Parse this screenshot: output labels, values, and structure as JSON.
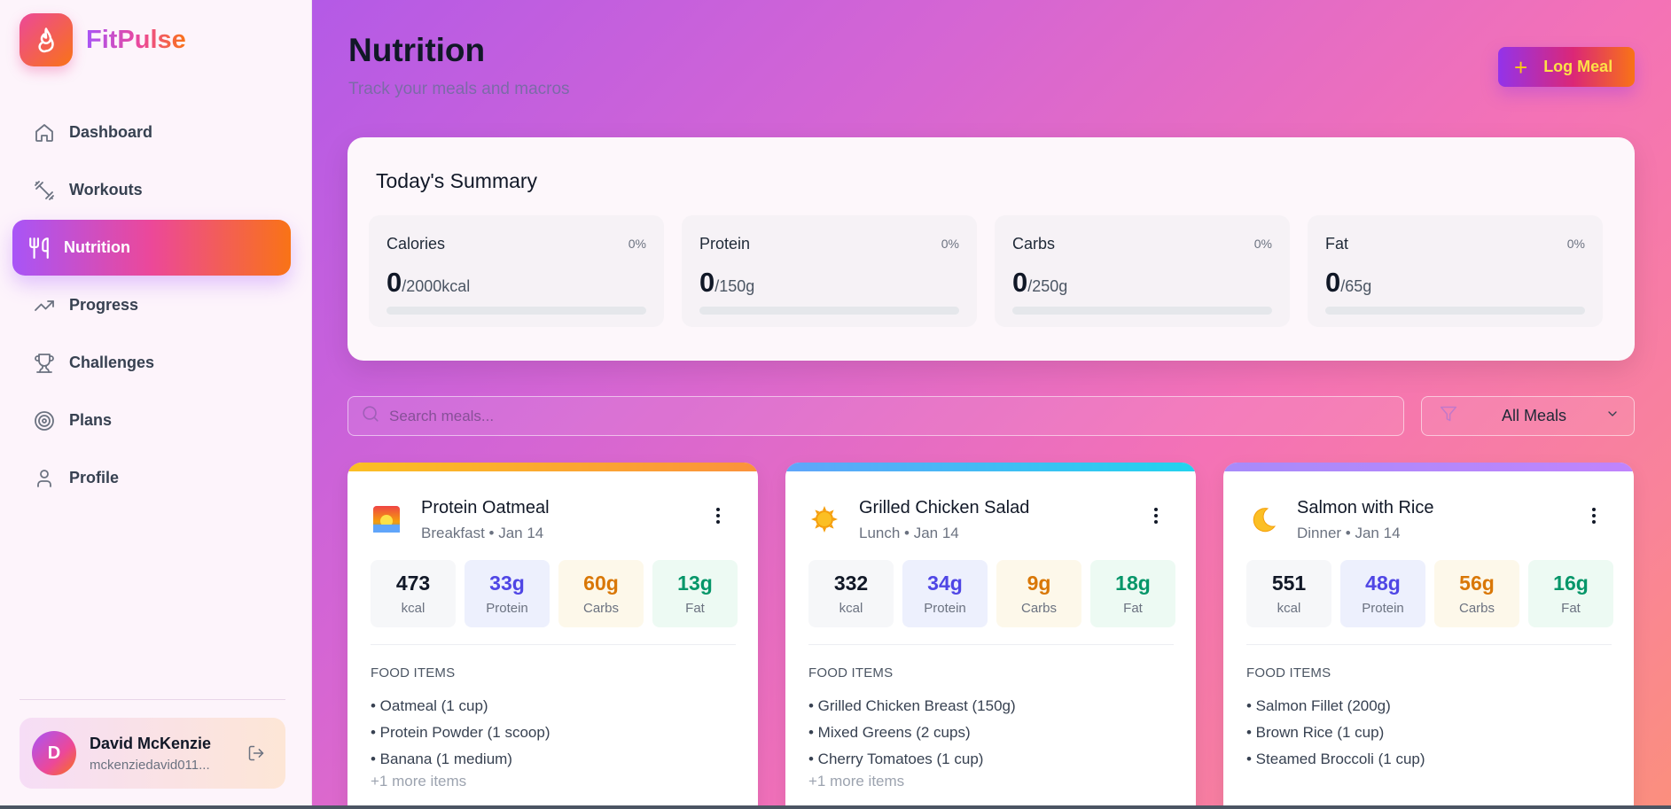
{
  "brand": {
    "name": "FitPulse"
  },
  "sidebar": {
    "items": [
      {
        "label": "Dashboard",
        "icon": "home-icon",
        "active": false
      },
      {
        "label": "Workouts",
        "icon": "dumbbell-icon",
        "active": false
      },
      {
        "label": "Nutrition",
        "icon": "utensils-icon",
        "active": true
      },
      {
        "label": "Progress",
        "icon": "trending-up-icon",
        "active": false
      },
      {
        "label": "Challenges",
        "icon": "trophy-icon",
        "active": false
      },
      {
        "label": "Plans",
        "icon": "target-icon",
        "active": false
      },
      {
        "label": "Profile",
        "icon": "user-icon",
        "active": false
      }
    ],
    "user": {
      "initial": "D",
      "name": "David McKenzie",
      "email": "mckenziedavid011..."
    }
  },
  "header": {
    "title": "Nutrition",
    "subtitle": "Track your meals and macros",
    "log_button": "Log Meal"
  },
  "summary": {
    "title": "Today's Summary",
    "macros": [
      {
        "name": "Calories",
        "percent": "0%",
        "value": "0",
        "goal": "/2000kcal",
        "progress": 0
      },
      {
        "name": "Protein",
        "percent": "0%",
        "value": "0",
        "goal": "/150g",
        "progress": 0
      },
      {
        "name": "Carbs",
        "percent": "0%",
        "value": "0",
        "goal": "/250g",
        "progress": 0
      },
      {
        "name": "Fat",
        "percent": "0%",
        "value": "0",
        "goal": "/65g",
        "progress": 0
      }
    ]
  },
  "search": {
    "placeholder": "Search meals..."
  },
  "filter": {
    "selected": "All Meals"
  },
  "food_items_label": "FOOD ITEMS",
  "meals": [
    {
      "title": "Protein Oatmeal",
      "meta": "Breakfast • Jan 14",
      "icon": "sunrise-icon",
      "accent": "#f59e0b",
      "stats": {
        "kcal": "473",
        "kcal_label": "kcal",
        "protein": "33g",
        "protein_label": "Protein",
        "carbs": "60g",
        "carbs_label": "Carbs",
        "fat": "13g",
        "fat_label": "Fat"
      },
      "items": [
        "• Oatmeal (1 cup)",
        "• Protein Powder (1 scoop)",
        "• Banana (1 medium)"
      ],
      "more": "+1 more items"
    },
    {
      "title": "Grilled Chicken Salad",
      "meta": "Lunch • Jan 14",
      "icon": "sun-icon",
      "accent": "#38bdf8",
      "stats": {
        "kcal": "332",
        "kcal_label": "kcal",
        "protein": "34g",
        "protein_label": "Protein",
        "carbs": "9g",
        "carbs_label": "Carbs",
        "fat": "18g",
        "fat_label": "Fat"
      },
      "items": [
        "• Grilled Chicken Breast (150g)",
        "• Mixed Greens (2 cups)",
        "• Cherry Tomatoes (1 cup)"
      ],
      "more": "+1 more items"
    },
    {
      "title": "Salmon with Rice",
      "meta": "Dinner • Jan 14",
      "icon": "moon-icon",
      "accent": "#a78bfa",
      "stats": {
        "kcal": "551",
        "kcal_label": "kcal",
        "protein": "48g",
        "protein_label": "Protein",
        "carbs": "56g",
        "carbs_label": "Carbs",
        "fat": "16g",
        "fat_label": "Fat"
      },
      "items": [
        "• Salmon Fillet (200g)",
        "• Brown Rice (1 cup)",
        "• Steamed Broccoli (1 cup)"
      ],
      "more": ""
    }
  ]
}
